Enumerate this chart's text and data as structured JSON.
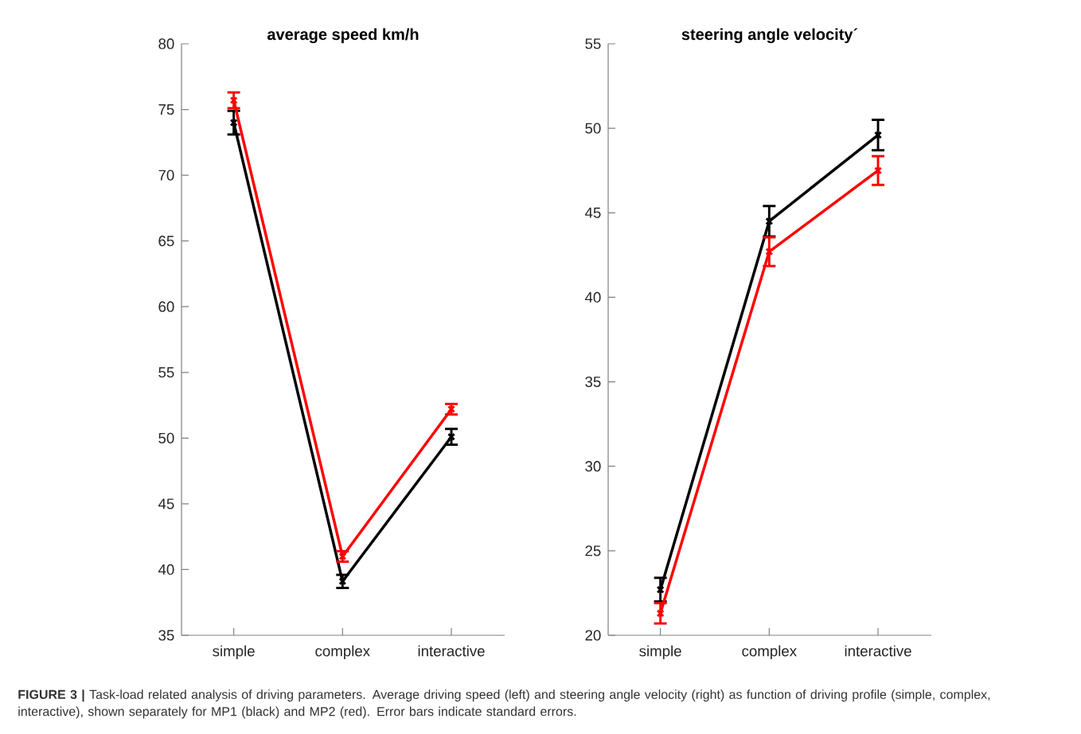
{
  "chart_data": [
    {
      "type": "line",
      "title": "average speed km/h",
      "categories": [
        "simple",
        "complex",
        "interactive"
      ],
      "marker": "cross",
      "line_style": "solid",
      "ylim": [
        35,
        80
      ],
      "yticks": [
        35,
        40,
        45,
        50,
        55,
        60,
        65,
        70,
        75,
        80
      ],
      "series": [
        {
          "color": "#000000",
          "values": [
            74.0,
            39.1,
            50.1
          ],
          "errors": [
            0.9,
            0.5,
            0.6
          ]
        },
        {
          "color": "#ff0000",
          "values": [
            75.7,
            41.0,
            52.2
          ],
          "errors": [
            0.6,
            0.4,
            0.4
          ]
        }
      ],
      "annotations": [
        "**FIGURE 3 |** Task-load related analysis of driving parameters. Average driving speed (left) and steering angle velocity (right) as function of driving profile (simple, complex, interactive), shown separately for MP1 (black) and MP2 (red). Error bars indicate standard errors."
      ]
    },
    {
      "type": "line",
      "title": "steering angle velocity´",
      "categories": [
        "simple",
        "complex",
        "interactive"
      ],
      "marker": "cross",
      "line_style": "solid",
      "ylim": [
        20,
        55
      ],
      "yticks": [
        20,
        25,
        30,
        35,
        40,
        45,
        50,
        55
      ],
      "series": [
        {
          "color": "#000000",
          "values": [
            22.7,
            44.5,
            49.6
          ],
          "errors": [
            0.7,
            0.9,
            0.9
          ]
        },
        {
          "color": "#ff0000",
          "values": [
            21.3,
            42.7,
            47.5
          ],
          "errors": [
            0.6,
            0.85,
            0.85
          ]
        }
      ]
    }
  ]
}
